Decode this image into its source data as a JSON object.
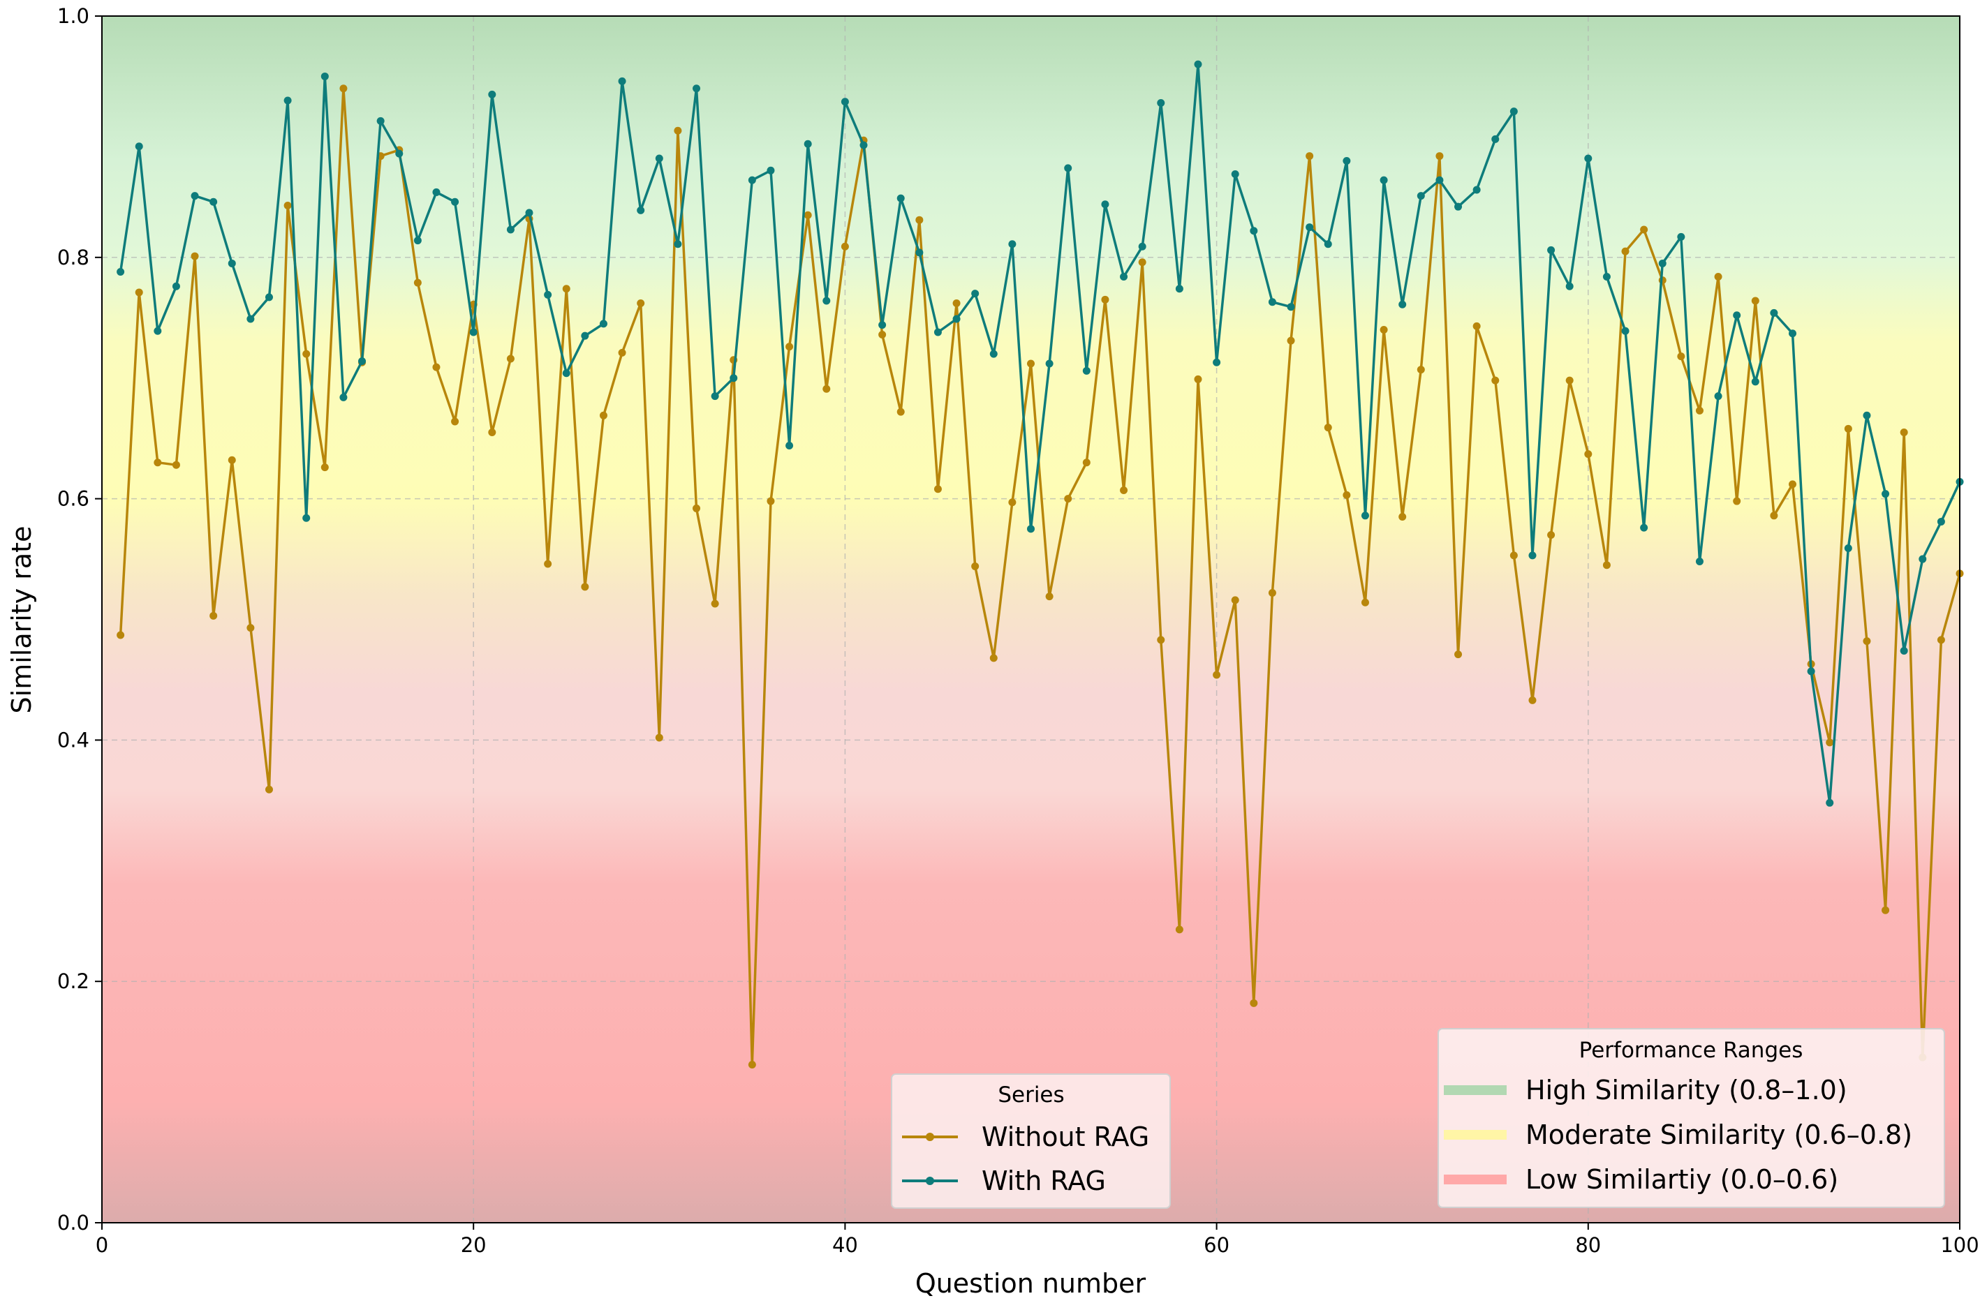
{
  "chart_data": {
    "type": "line",
    "title": "",
    "xlabel": "Question number",
    "ylabel": "Similarity rate",
    "xlim": [
      0,
      100
    ],
    "ylim": [
      0.0,
      1.0
    ],
    "xticks": [
      "0",
      "20",
      "40",
      "60",
      "80",
      "100"
    ],
    "yticks": [
      "0.0",
      "0.2",
      "0.4",
      "0.6",
      "0.8",
      "1.0"
    ],
    "grid": true,
    "x": [
      1,
      2,
      3,
      4,
      5,
      6,
      7,
      8,
      9,
      10,
      11,
      12,
      13,
      14,
      15,
      16,
      17,
      18,
      19,
      20,
      21,
      22,
      23,
      24,
      25,
      26,
      27,
      28,
      29,
      30,
      31,
      32,
      33,
      34,
      35,
      36,
      37,
      38,
      39,
      40,
      41,
      42,
      43,
      44,
      45,
      46,
      47,
      48,
      49,
      50,
      51,
      52,
      53,
      54,
      55,
      56,
      57,
      58,
      59,
      60,
      61,
      62,
      63,
      64,
      65,
      66,
      67,
      68,
      69,
      70,
      71,
      72,
      73,
      74,
      75,
      76,
      77,
      78,
      79,
      80,
      81,
      82,
      83,
      84,
      85,
      86,
      87,
      88,
      89,
      90,
      91,
      92,
      93,
      94,
      95,
      96,
      97,
      98,
      99,
      100
    ],
    "series": [
      {
        "name": "Without RAG",
        "color": "#b8860b",
        "values": [
          0.487,
          0.771,
          0.63,
          0.628,
          0.801,
          0.503,
          0.632,
          0.493,
          0.359,
          0.843,
          0.72,
          0.626,
          0.94,
          0.713,
          0.884,
          0.889,
          0.779,
          0.709,
          0.664,
          0.761,
          0.655,
          0.716,
          0.832,
          0.546,
          0.774,
          0.527,
          0.669,
          0.721,
          0.762,
          0.402,
          0.905,
          0.592,
          0.513,
          0.715,
          0.131,
          0.598,
          0.726,
          0.835,
          0.691,
          0.809,
          0.897,
          0.736,
          0.672,
          0.831,
          0.608,
          0.762,
          0.544,
          0.468,
          0.597,
          0.712,
          0.519,
          0.6,
          0.63,
          0.765,
          0.607,
          0.796,
          0.483,
          0.243,
          0.699,
          0.454,
          0.516,
          0.182,
          0.522,
          0.731,
          0.884,
          0.659,
          0.603,
          0.514,
          0.74,
          0.585,
          0.707,
          0.884,
          0.471,
          0.743,
          0.698,
          0.553,
          0.433,
          0.57,
          0.698,
          0.637,
          0.545,
          0.805,
          0.823,
          0.781,
          0.718,
          0.673,
          0.784,
          0.598,
          0.764,
          0.586,
          0.612,
          0.463,
          0.398,
          0.658,
          0.482,
          0.259,
          0.655,
          0.137,
          0.483,
          0.538
        ]
      },
      {
        "name": "With RAG",
        "color": "#0e7c7b",
        "values": [
          0.788,
          0.892,
          0.739,
          0.776,
          0.851,
          0.846,
          0.795,
          0.749,
          0.767,
          0.93,
          0.584,
          0.95,
          0.684,
          0.714,
          0.913,
          0.886,
          0.814,
          0.854,
          0.846,
          0.738,
          0.935,
          0.823,
          0.837,
          0.769,
          0.704,
          0.735,
          0.745,
          0.946,
          0.839,
          0.882,
          0.811,
          0.94,
          0.685,
          0.7,
          0.864,
          0.872,
          0.644,
          0.894,
          0.764,
          0.929,
          0.893,
          0.744,
          0.849,
          0.804,
          0.738,
          0.749,
          0.77,
          0.72,
          0.811,
          0.575,
          0.712,
          0.874,
          0.706,
          0.844,
          0.784,
          0.809,
          0.928,
          0.774,
          0.96,
          0.713,
          0.869,
          0.822,
          0.763,
          0.759,
          0.825,
          0.811,
          0.88,
          0.586,
          0.864,
          0.761,
          0.851,
          0.864,
          0.842,
          0.856,
          0.898,
          0.921,
          0.553,
          0.806,
          0.776,
          0.882,
          0.784,
          0.739,
          0.576,
          0.795,
          0.817,
          0.548,
          0.685,
          0.752,
          0.697,
          0.754,
          0.737,
          0.457,
          0.348,
          0.559,
          0.669,
          0.604,
          0.474,
          0.55,
          0.581,
          0.614
        ]
      }
    ],
    "legend_series": {
      "title": "Series",
      "placement": "lower-center",
      "entries": [
        "Without RAG",
        "With RAG"
      ]
    },
    "legend_ranges": {
      "title": "Performance Ranges",
      "placement": "lower-right",
      "entries": [
        {
          "label": "High Similarity (0.8–1.0)",
          "color": "#b2d8b2"
        },
        {
          "label": "Moderate Similarity (0.6–0.8)",
          "color": "#fff5a6"
        },
        {
          "label": "Low Similartiy (0.0–0.6)",
          "color": "#ffa8a8"
        }
      ]
    },
    "background_bands": [
      {
        "range": [
          0.8,
          1.0
        ],
        "color": "#dff5df"
      },
      {
        "range": [
          0.6,
          0.8
        ],
        "color": "#fefdb6"
      },
      {
        "range": [
          0.0,
          0.6
        ],
        "color": "#fbb3b3"
      }
    ]
  }
}
